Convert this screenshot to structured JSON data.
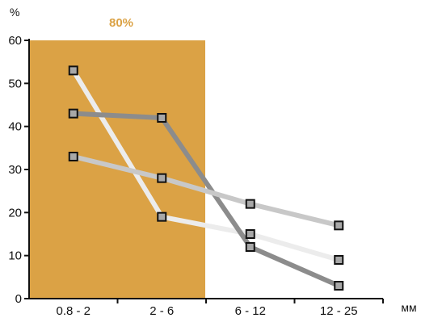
{
  "chart_data": {
    "type": "line",
    "categories": [
      "0.8 - 2",
      "2 - 6",
      "6 - 12",
      "12 - 25"
    ],
    "ylim": [
      0,
      60
    ],
    "yticks": [
      0,
      10,
      20,
      30,
      40,
      50,
      60
    ],
    "ylabel": "%",
    "xlabel": "мм",
    "grid": false,
    "highlight_band": {
      "label": "80%",
      "from_category": "0.8 - 2",
      "to_category": "2 - 6",
      "color": "#dba245"
    },
    "series": [
      {
        "values": [
          53,
          19,
          15,
          9
        ],
        "color": "#ececec"
      },
      {
        "values": [
          43,
          42,
          12,
          3
        ],
        "color": "#8c8c8c"
      },
      {
        "values": [
          33,
          28,
          22,
          17
        ],
        "color": "#c8c8c8"
      }
    ],
    "marker_fill": "#a8a8a8",
    "marker_stroke": "#111111"
  }
}
